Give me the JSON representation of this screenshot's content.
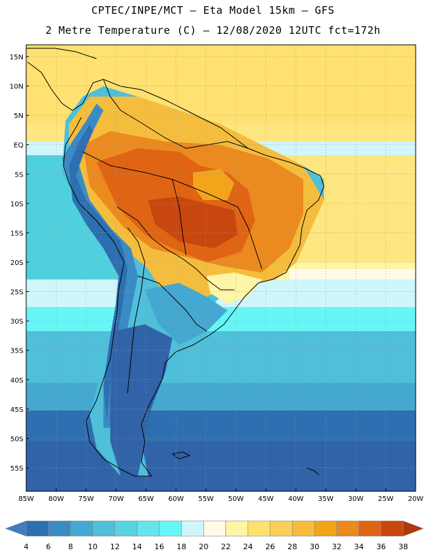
{
  "header": {
    "line1": "CPTEC/INPE/MCT –  Eta Model 15km – GFS",
    "line2": "2 Metre Temperature (C) – 12/08/2020 12UTC fct=172h"
  },
  "map": {
    "lat_labels": [
      "15N",
      "10N",
      "5N",
      "EQ",
      "5S",
      "10S",
      "15S",
      "20S",
      "25S",
      "30S",
      "35S",
      "40S",
      "45S",
      "50S",
      "55S"
    ],
    "lon_labels": [
      "85W",
      "80W",
      "75W",
      "70W",
      "65W",
      "60W",
      "55W",
      "50W",
      "45W",
      "40W",
      "35W",
      "30W",
      "25W",
      "20W"
    ],
    "lon_range": [
      -85,
      -20
    ],
    "lat_range": [
      -59,
      17
    ]
  },
  "colorbar": {
    "labels": [
      "4",
      "6",
      "8",
      "10",
      "12",
      "14",
      "16",
      "18",
      "20",
      "22",
      "24",
      "26",
      "28",
      "30",
      "32",
      "34",
      "36",
      "38"
    ],
    "colors": [
      "#3e7cbf",
      "#2d6fb0",
      "#3a8bc4",
      "#45a8d0",
      "#4fbfda",
      "#57d3e2",
      "#62e6ec",
      "#66f6f6",
      "#cff6fb",
      "#fffbe8",
      "#fff5a6",
      "#ffe16e",
      "#fbd05a",
      "#f5bd3d",
      "#f2a51a",
      "#eb8a1e",
      "#df6413",
      "#c8470e",
      "#b2360c"
    ]
  }
}
